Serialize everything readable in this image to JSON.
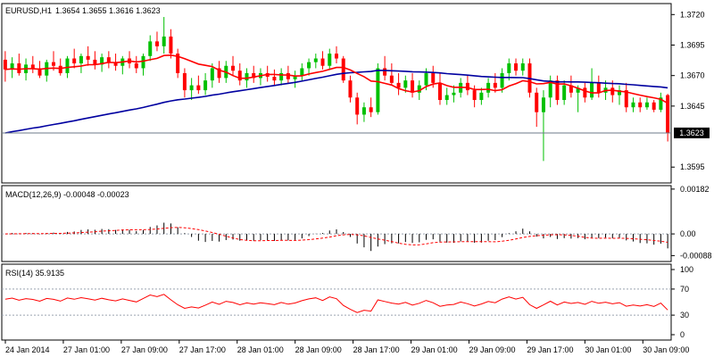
{
  "chart_data": [
    {
      "type": "candlestick",
      "title": "EURUSD,H1",
      "ohlc_label": "1.3654 1.3655 1.3616 1.3623",
      "ylim": [
        1.3582,
        1.3729
      ],
      "y_ticks": [
        "1.3720",
        "1.3695",
        "1.3670",
        "1.3645",
        "1.3595"
      ],
      "last_price": 1.3623,
      "last_price_label": "1.3623",
      "x_labels": [
        "24 Jan 2014",
        "27 Jan 01:00",
        "27 Jan 09:00",
        "27 Jan 17:00",
        "28 Jan 01:00",
        "28 Jan 09:00",
        "28 Jan 17:00",
        "29 Jan 01:00",
        "29 Jan 09:00",
        "29 Jan 17:00",
        "30 Jan 01:00",
        "30 Jan 09:00"
      ],
      "candles": [
        [
          1.3683,
          1.369,
          1.3665,
          1.3675
        ],
        [
          1.3675,
          1.3685,
          1.3668,
          1.368
        ],
        [
          1.368,
          1.3688,
          1.367,
          1.3672
        ],
        [
          1.3672,
          1.3684,
          1.3666,
          1.3679
        ],
        [
          1.3679,
          1.3686,
          1.3672,
          1.3676
        ],
        [
          1.3676,
          1.3682,
          1.3668,
          1.367
        ],
        [
          1.367,
          1.3683,
          1.3665,
          1.3681
        ],
        [
          1.3681,
          1.369,
          1.3674,
          1.3678
        ],
        [
          1.3678,
          1.3684,
          1.367,
          1.3672
        ],
        [
          1.3672,
          1.3686,
          1.3668,
          1.3684
        ],
        [
          1.3684,
          1.3692,
          1.3676,
          1.368
        ],
        [
          1.368,
          1.3688,
          1.3672,
          1.3686
        ],
        [
          1.3686,
          1.3694,
          1.3678,
          1.3683
        ],
        [
          1.3683,
          1.369,
          1.3675,
          1.3679
        ],
        [
          1.3679,
          1.3688,
          1.3673,
          1.3685
        ],
        [
          1.3685,
          1.369,
          1.3676,
          1.3681
        ],
        [
          1.3681,
          1.3688,
          1.3674,
          1.3678
        ],
        [
          1.3678,
          1.3686,
          1.3671,
          1.3684
        ],
        [
          1.3684,
          1.369,
          1.3676,
          1.368
        ],
        [
          1.368,
          1.3686,
          1.3672,
          1.3676
        ],
        [
          1.3676,
          1.3688,
          1.367,
          1.3686
        ],
        [
          1.3686,
          1.3703,
          1.3682,
          1.3698
        ],
        [
          1.3698,
          1.3706,
          1.369,
          1.3694
        ],
        [
          1.3694,
          1.3718,
          1.3688,
          1.3702
        ],
        [
          1.3702,
          1.3708,
          1.3684,
          1.3688
        ],
        [
          1.3688,
          1.3692,
          1.3668,
          1.3672
        ],
        [
          1.3672,
          1.3676,
          1.3652,
          1.3658
        ],
        [
          1.3658,
          1.3668,
          1.365,
          1.3662
        ],
        [
          1.3662,
          1.367,
          1.3655,
          1.3658
        ],
        [
          1.3658,
          1.3672,
          1.3654,
          1.3666
        ],
        [
          1.3666,
          1.368,
          1.366,
          1.3676
        ],
        [
          1.3676,
          1.3682,
          1.3664,
          1.3668
        ],
        [
          1.3668,
          1.3682,
          1.3664,
          1.3678
        ],
        [
          1.3678,
          1.3686,
          1.367,
          1.3674
        ],
        [
          1.3674,
          1.368,
          1.3662,
          1.3666
        ],
        [
          1.3666,
          1.3676,
          1.366,
          1.3672
        ],
        [
          1.3672,
          1.3678,
          1.3664,
          1.3668
        ],
        [
          1.3668,
          1.3676,
          1.3662,
          1.3672
        ],
        [
          1.3672,
          1.3678,
          1.3665,
          1.3669
        ],
        [
          1.3669,
          1.3675,
          1.3662,
          1.3666
        ],
        [
          1.3666,
          1.3676,
          1.3662,
          1.3672
        ],
        [
          1.3672,
          1.3678,
          1.3664,
          1.3667
        ],
        [
          1.3667,
          1.3674,
          1.366,
          1.367
        ],
        [
          1.367,
          1.368,
          1.3666,
          1.3676
        ],
        [
          1.3676,
          1.3684,
          1.367,
          1.3681
        ],
        [
          1.3681,
          1.3688,
          1.3676,
          1.3684
        ],
        [
          1.3684,
          1.369,
          1.3675,
          1.3678
        ],
        [
          1.3678,
          1.3692,
          1.3675,
          1.3688
        ],
        [
          1.3688,
          1.3694,
          1.368,
          1.3684
        ],
        [
          1.3684,
          1.3686,
          1.3664,
          1.3666
        ],
        [
          1.3666,
          1.367,
          1.3648,
          1.3652
        ],
        [
          1.3652,
          1.3656,
          1.363,
          1.3638
        ],
        [
          1.3638,
          1.3648,
          1.3632,
          1.3644
        ],
        [
          1.3644,
          1.3652,
          1.3636,
          1.364
        ],
        [
          1.364,
          1.368,
          1.3638,
          1.3676
        ],
        [
          1.3676,
          1.3686,
          1.3666,
          1.367
        ],
        [
          1.367,
          1.368,
          1.3662,
          1.3664
        ],
        [
          1.3664,
          1.3672,
          1.3654,
          1.366
        ],
        [
          1.366,
          1.367,
          1.3656,
          1.3666
        ],
        [
          1.3666,
          1.3672,
          1.3652,
          1.3656
        ],
        [
          1.3656,
          1.3666,
          1.365,
          1.3662
        ],
        [
          1.3662,
          1.3676,
          1.3658,
          1.3672
        ],
        [
          1.3672,
          1.3678,
          1.366,
          1.3664
        ],
        [
          1.3664,
          1.3672,
          1.3646,
          1.365
        ],
        [
          1.365,
          1.366,
          1.3646,
          1.3654
        ],
        [
          1.3654,
          1.3662,
          1.3648,
          1.3656
        ],
        [
          1.3656,
          1.3668,
          1.3652,
          1.3664
        ],
        [
          1.3664,
          1.367,
          1.3654,
          1.3658
        ],
        [
          1.3658,
          1.3662,
          1.3644,
          1.365
        ],
        [
          1.365,
          1.366,
          1.3646,
          1.3656
        ],
        [
          1.3656,
          1.3668,
          1.3652,
          1.3664
        ],
        [
          1.3664,
          1.3672,
          1.3656,
          1.366
        ],
        [
          1.366,
          1.3676,
          1.3656,
          1.3672
        ],
        [
          1.3672,
          1.3684,
          1.3666,
          1.368
        ],
        [
          1.368,
          1.3684,
          1.367,
          1.3674
        ],
        [
          1.3674,
          1.3684,
          1.367,
          1.368
        ],
        [
          1.368,
          1.3684,
          1.3652,
          1.3656
        ],
        [
          1.3656,
          1.366,
          1.3628,
          1.364
        ],
        [
          1.364,
          1.3658,
          1.36,
          1.3652
        ],
        [
          1.3652,
          1.367,
          1.3644,
          1.3666
        ],
        [
          1.3666,
          1.367,
          1.3646,
          1.365
        ],
        [
          1.365,
          1.3666,
          1.3646,
          1.3662
        ],
        [
          1.3662,
          1.367,
          1.3652,
          1.3656
        ],
        [
          1.3656,
          1.3662,
          1.364,
          1.366
        ],
        [
          1.366,
          1.3664,
          1.3648,
          1.3652
        ],
        [
          1.3652,
          1.3676,
          1.365,
          1.3664
        ],
        [
          1.3664,
          1.367,
          1.3652,
          1.3656
        ],
        [
          1.3656,
          1.3666,
          1.365,
          1.366
        ],
        [
          1.366,
          1.3666,
          1.3648,
          1.3654
        ],
        [
          1.3654,
          1.3662,
          1.3646,
          1.3658
        ],
        [
          1.3658,
          1.3664,
          1.364,
          1.3644
        ],
        [
          1.3644,
          1.3652,
          1.364,
          1.3648
        ],
        [
          1.3648,
          1.3652,
          1.364,
          1.3644
        ],
        [
          1.3644,
          1.3652,
          1.3642,
          1.3648
        ],
        [
          1.3648,
          1.365,
          1.364,
          1.3642
        ],
        [
          1.3642,
          1.3656,
          1.364,
          1.3652
        ],
        [
          1.3654,
          1.3655,
          1.3616,
          1.3623
        ]
      ],
      "ma_fast_color": "#ff0000",
      "ma_slow_color": "#0000a0",
      "bull_color": "#00c000",
      "bear_color": "#ff0000"
    },
    {
      "type": "bar",
      "title": "MACD(12,26,9) -0.00048 -0.00023",
      "ylim": [
        -0.00112,
        0.00196
      ],
      "y_ticks": [
        "0.00182",
        "0.00",
        "-0.00088"
      ],
      "zero_label": "0.00",
      "histogram_color": "#000000",
      "signal_color": "#ff0000"
    },
    {
      "type": "line",
      "title": "RSI(14) 35.9135",
      "ylim": [
        0,
        100
      ],
      "y_ticks": [
        "100",
        "70",
        "30",
        "0"
      ],
      "levels": [
        70,
        30
      ],
      "line_color": "#ff0000"
    }
  ]
}
